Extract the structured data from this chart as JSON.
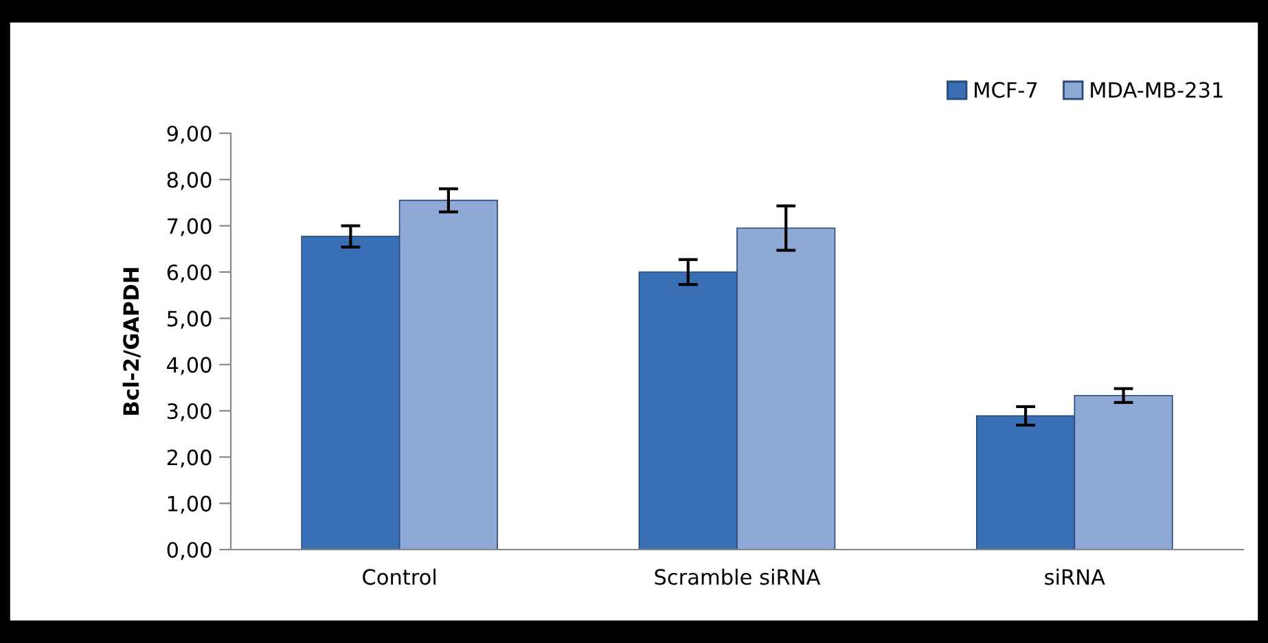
{
  "chart_data": {
    "type": "bar",
    "ylabel": "Bcl-2/GAPDH",
    "categories": [
      "Control",
      "Scramble siRNA",
      "siRNA"
    ],
    "series": [
      {
        "name": "MCF-7",
        "color": "#3a6fb5",
        "values": [
          6.77,
          6.0,
          2.89
        ],
        "errors": [
          0.23,
          0.27,
          0.2
        ]
      },
      {
        "name": "MDA-MB-231",
        "color": "#8fa9d6",
        "values": [
          7.55,
          6.95,
          3.33
        ],
        "errors": [
          0.25,
          0.48,
          0.15
        ]
      }
    ],
    "ylim": [
      0,
      9
    ],
    "yticks": [
      {
        "value": 0,
        "label": "0,00"
      },
      {
        "value": 1,
        "label": "1,00"
      },
      {
        "value": 2,
        "label": "2,00"
      },
      {
        "value": 3,
        "label": "3,00"
      },
      {
        "value": 4,
        "label": "4,00"
      },
      {
        "value": 5,
        "label": "5,00"
      },
      {
        "value": 6,
        "label": "6,00"
      },
      {
        "value": 7,
        "label": "7,00"
      },
      {
        "value": 8,
        "label": "8,00"
      },
      {
        "value": 9,
        "label": "9,00"
      }
    ],
    "grid": false,
    "legend": "top right"
  }
}
